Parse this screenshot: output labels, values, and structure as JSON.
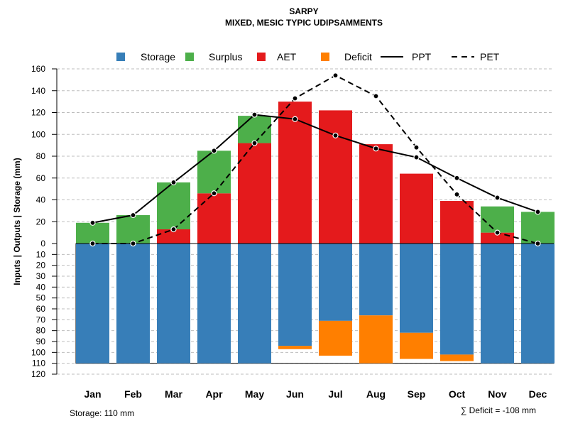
{
  "chart_data": {
    "type": "bar",
    "title": "SARPY",
    "subtitle": "MIXED, MESIC TYPIC UDIPSAMMENTS",
    "ylabel": "Inputs | Outputs | Storage    (mm)",
    "categories": [
      "Jan",
      "Feb",
      "Mar",
      "Apr",
      "May",
      "Jun",
      "Jul",
      "Aug",
      "Sep",
      "Oct",
      "Nov",
      "Dec"
    ],
    "upper_ylim": [
      0,
      160
    ],
    "upper_ticks": [
      "0",
      "20",
      "40",
      "60",
      "80",
      "100",
      "120",
      "140",
      "160"
    ],
    "lower_ylim": [
      0,
      120
    ],
    "lower_ticks": [
      "0",
      "10",
      "20",
      "30",
      "40",
      "50",
      "60",
      "70",
      "80",
      "90",
      "100",
      "110",
      "120"
    ],
    "legend": [
      {
        "name": "Storage",
        "kind": "box",
        "color": "#377eb8"
      },
      {
        "name": "Surplus",
        "kind": "box",
        "color": "#4daf4a"
      },
      {
        "name": "AET",
        "kind": "box",
        "color": "#e41a1c"
      },
      {
        "name": "Deficit",
        "kind": "box",
        "color": "#ff7f00"
      },
      {
        "name": "PPT",
        "kind": "line-solid",
        "color": "#000000"
      },
      {
        "name": "PET",
        "kind": "line-dashed",
        "color": "#000000"
      }
    ],
    "series": [
      {
        "name": "AET",
        "color": "#e41a1c",
        "values": [
          0,
          0,
          13,
          46,
          92,
          130,
          122,
          91,
          64,
          39,
          10,
          0
        ]
      },
      {
        "name": "Surplus",
        "color": "#4daf4a",
        "values": [
          19,
          26,
          43,
          39,
          25,
          0,
          0,
          0,
          0,
          0,
          24,
          29
        ]
      },
      {
        "name": "Storage",
        "color": "#377eb8",
        "values": [
          110,
          110,
          110,
          110,
          110,
          94,
          71,
          66,
          82,
          102,
          110,
          110
        ]
      },
      {
        "name": "Deficit",
        "color": "#ff7f00",
        "values": [
          0,
          0,
          0,
          0,
          0,
          3,
          32,
          44,
          24,
          6,
          0,
          0
        ]
      },
      {
        "name": "PPT",
        "color": "#000000",
        "values": [
          19,
          26,
          56,
          85,
          118,
          114,
          99,
          87,
          79,
          60,
          42,
          29
        ]
      },
      {
        "name": "PET",
        "color": "#000000",
        "values": [
          0,
          0,
          13,
          46,
          92,
          133,
          154,
          135,
          88,
          45,
          10,
          0
        ]
      }
    ],
    "storage_capacity": 110,
    "storage_note": "Storage: 110 mm",
    "deficit_note": "∑ Deficit = -108 mm"
  }
}
